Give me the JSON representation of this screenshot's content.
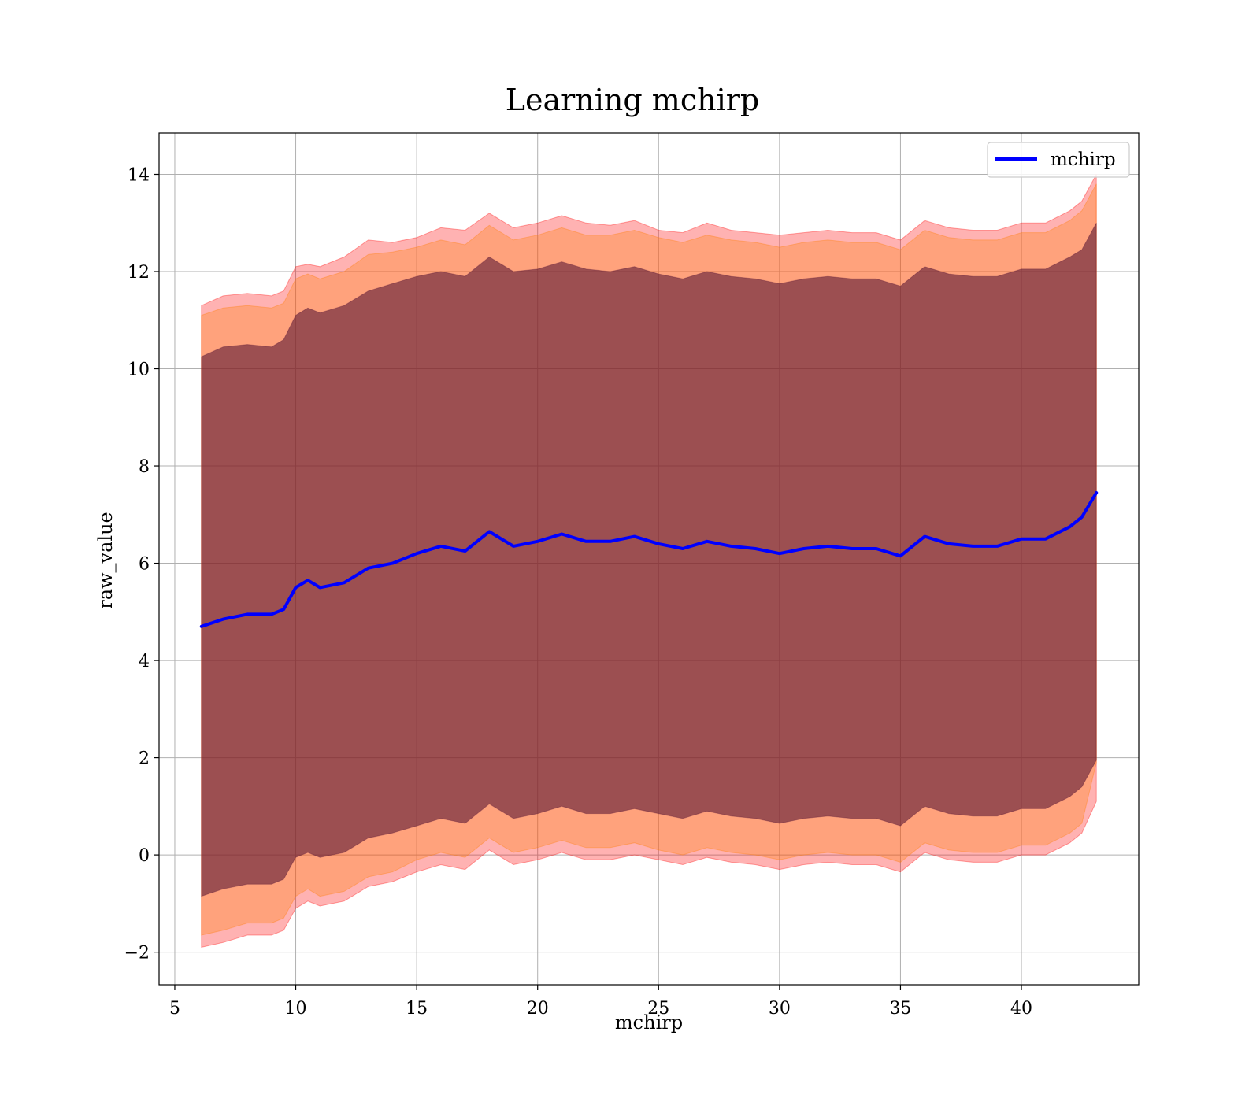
{
  "chart_data": {
    "type": "area",
    "title": "Learning mchirp",
    "xlabel": "mchirp",
    "ylabel": "raw_value",
    "xlim": [
      4.35,
      44.85
    ],
    "ylim": [
      -2.67,
      14.85
    ],
    "xticks": [
      5,
      10,
      15,
      20,
      25,
      30,
      35,
      40
    ],
    "xtick_labels": [
      "5",
      "10",
      "15",
      "20",
      "25",
      "30",
      "35",
      "40"
    ],
    "yticks": [
      -2,
      0,
      2,
      4,
      6,
      8,
      10,
      12,
      14
    ],
    "ytick_labels": [
      "−2",
      "0",
      "2",
      "4",
      "6",
      "8",
      "10",
      "12",
      "14"
    ],
    "grid": true,
    "legend": {
      "position": "top-right",
      "entries": [
        "mchirp"
      ]
    },
    "x": [
      6.1,
      7.0,
      8.0,
      9.0,
      9.5,
      10.0,
      10.5,
      11.0,
      12.0,
      13.0,
      14.0,
      15.0,
      16.0,
      17.0,
      18.0,
      19.0,
      20.0,
      21.0,
      22.0,
      23.0,
      24.0,
      25.0,
      26.0,
      27.0,
      28.0,
      29.0,
      30.0,
      31.0,
      32.0,
      33.0,
      34.0,
      35.0,
      36.0,
      37.0,
      38.0,
      39.0,
      40.0,
      41.0,
      42.0,
      42.5,
      43.1
    ],
    "series": [
      {
        "name": "mchirp",
        "color": "#0000ff",
        "values": [
          4.7,
          4.85,
          4.95,
          4.95,
          5.05,
          5.5,
          5.65,
          5.5,
          5.6,
          5.9,
          6.0,
          6.2,
          6.35,
          6.25,
          6.65,
          6.35,
          6.45,
          6.6,
          6.45,
          6.45,
          6.55,
          6.4,
          6.3,
          6.45,
          6.35,
          6.3,
          6.2,
          6.3,
          6.35,
          6.3,
          6.3,
          6.15,
          6.55,
          6.4,
          6.35,
          6.35,
          6.5,
          6.5,
          6.75,
          6.95,
          7.45
        ]
      }
    ],
    "bands": [
      {
        "sigma": 3,
        "color": "#ff0000",
        "opacity": 0.3,
        "upper": [
          11.3,
          11.5,
          11.55,
          11.5,
          11.6,
          12.1,
          12.15,
          12.1,
          12.3,
          12.65,
          12.6,
          12.7,
          12.9,
          12.85,
          13.2,
          12.9,
          13.0,
          13.15,
          13.0,
          12.95,
          13.05,
          12.85,
          12.8,
          13.0,
          12.85,
          12.8,
          12.75,
          12.8,
          12.85,
          12.8,
          12.8,
          12.65,
          13.05,
          12.9,
          12.85,
          12.85,
          13.0,
          13.0,
          13.25,
          13.45,
          14.0
        ],
        "lower": [
          -1.9,
          -1.8,
          -1.65,
          -1.65,
          -1.55,
          -1.1,
          -0.95,
          -1.05,
          -0.95,
          -0.65,
          -0.55,
          -0.35,
          -0.2,
          -0.3,
          0.1,
          -0.2,
          -0.1,
          0.05,
          -0.1,
          -0.1,
          0.0,
          -0.1,
          -0.2,
          -0.05,
          -0.15,
          -0.2,
          -0.3,
          -0.2,
          -0.15,
          -0.2,
          -0.2,
          -0.35,
          0.05,
          -0.1,
          -0.15,
          -0.15,
          0.0,
          0.0,
          0.25,
          0.45,
          1.1
        ]
      },
      {
        "sigma": 2,
        "color": "#ff7f00",
        "opacity": 0.3,
        "upper": [
          11.1,
          11.25,
          11.3,
          11.25,
          11.35,
          11.85,
          11.95,
          11.85,
          12.0,
          12.35,
          12.4,
          12.5,
          12.65,
          12.55,
          12.95,
          12.65,
          12.75,
          12.9,
          12.75,
          12.75,
          12.85,
          12.7,
          12.6,
          12.75,
          12.65,
          12.6,
          12.5,
          12.6,
          12.65,
          12.6,
          12.6,
          12.45,
          12.85,
          12.7,
          12.65,
          12.65,
          12.8,
          12.8,
          13.05,
          13.25,
          13.8
        ],
        "lower": [
          -1.65,
          -1.55,
          -1.4,
          -1.4,
          -1.3,
          -0.85,
          -0.7,
          -0.85,
          -0.75,
          -0.45,
          -0.35,
          -0.1,
          0.05,
          -0.05,
          0.35,
          0.05,
          0.15,
          0.3,
          0.15,
          0.15,
          0.25,
          0.1,
          0.0,
          0.15,
          0.05,
          0.0,
          -0.1,
          0.0,
          0.05,
          0.0,
          0.0,
          -0.15,
          0.25,
          0.1,
          0.05,
          0.05,
          0.2,
          0.2,
          0.45,
          0.65,
          1.9
        ]
      },
      {
        "sigma": 1,
        "color": "#5a1836",
        "opacity": 0.6,
        "upper": [
          10.25,
          10.45,
          10.5,
          10.45,
          10.6,
          11.1,
          11.25,
          11.15,
          11.3,
          11.6,
          11.75,
          11.9,
          12.0,
          11.9,
          12.3,
          12.0,
          12.05,
          12.2,
          12.05,
          12.0,
          12.1,
          11.95,
          11.85,
          12.0,
          11.9,
          11.85,
          11.75,
          11.85,
          11.9,
          11.85,
          11.85,
          11.7,
          12.1,
          11.95,
          11.9,
          11.9,
          12.05,
          12.05,
          12.3,
          12.45,
          13.0
        ],
        "lower": [
          -0.85,
          -0.7,
          -0.6,
          -0.6,
          -0.5,
          -0.05,
          0.05,
          -0.05,
          0.05,
          0.35,
          0.45,
          0.6,
          0.75,
          0.65,
          1.05,
          0.75,
          0.85,
          1.0,
          0.85,
          0.85,
          0.95,
          0.85,
          0.75,
          0.9,
          0.8,
          0.75,
          0.65,
          0.75,
          0.8,
          0.75,
          0.75,
          0.6,
          1.0,
          0.85,
          0.8,
          0.8,
          0.95,
          0.95,
          1.2,
          1.4,
          1.95
        ]
      }
    ]
  }
}
